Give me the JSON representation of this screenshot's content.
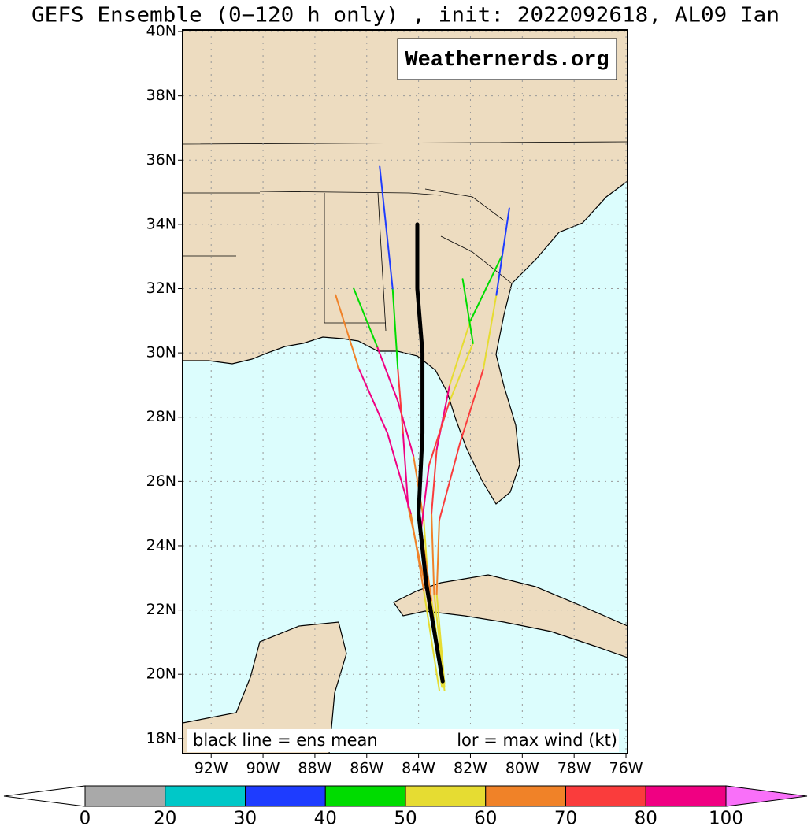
{
  "chart_data": {
    "type": "map",
    "title": "GEFS Ensemble (0−120 h only) , init: 2022092618, AL09 Ian",
    "watermark": "Weathernerds.org",
    "legend_texts": [
      "black line = ens mean",
      "lor = max wind (kt)"
    ],
    "xlim": [
      -93.1,
      -75.94
    ],
    "ylim": [
      17.53,
      40.05
    ],
    "xticks": [
      {
        "value": -92,
        "label": "92W"
      },
      {
        "value": -90,
        "label": "90W"
      },
      {
        "value": -88,
        "label": "88W"
      },
      {
        "value": -86,
        "label": "86W"
      },
      {
        "value": -84,
        "label": "84W"
      },
      {
        "value": -82,
        "label": "82W"
      },
      {
        "value": -80,
        "label": "80W"
      },
      {
        "value": -78,
        "label": "78W"
      },
      {
        "value": -76,
        "label": "76W"
      }
    ],
    "yticks": [
      {
        "value": 18,
        "label": "18N"
      },
      {
        "value": 20,
        "label": "20N"
      },
      {
        "value": 22,
        "label": "22N"
      },
      {
        "value": 24,
        "label": "24N"
      },
      {
        "value": 26,
        "label": "26N"
      },
      {
        "value": 28,
        "label": "28N"
      },
      {
        "value": 30,
        "label": "30N"
      },
      {
        "value": 32,
        "label": "32N"
      },
      {
        "value": 34,
        "label": "34N"
      },
      {
        "value": 36,
        "label": "36N"
      },
      {
        "value": 38,
        "label": "38N"
      },
      {
        "value": 40,
        "label": "40N"
      }
    ],
    "grid": true,
    "mean_track": {
      "color": "#000000",
      "lon": [
        -83.07,
        -83.7,
        -84.0,
        -83.85,
        -83.85,
        -84.05,
        -84.05
      ],
      "lat": [
        19.78,
        22.8,
        25.0,
        27.5,
        30.0,
        32.0,
        34.0
      ]
    },
    "series": [
      {
        "lon": [
          -83.1,
          -83.6,
          -83.8,
          -84.2,
          -84.8,
          -85.6,
          -86.5
        ],
        "lat": [
          19.6,
          22.5,
          24.8,
          26.8,
          28.5,
          30.2,
          32.0
        ],
        "wind": [
          55,
          55,
          65,
          85,
          85,
          45,
          35
        ]
      },
      {
        "lon": [
          -83.0,
          -83.4,
          -83.5,
          -83.3,
          -82.8,
          -82.0,
          -80.8
        ],
        "lat": [
          19.6,
          22.5,
          25.0,
          27.0,
          29.0,
          31.0,
          33.0
        ],
        "wind": [
          55,
          60,
          75,
          80,
          55,
          40,
          30
        ]
      },
      {
        "lon": [
          -83.2,
          -83.8,
          -84.3,
          -85.2,
          -86.3,
          -87.2
        ],
        "lat": [
          19.5,
          22.6,
          25.0,
          27.5,
          29.5,
          31.8
        ],
        "wind": [
          55,
          60,
          80,
          85,
          60,
          35
        ]
      },
      {
        "lon": [
          -83.0,
          -83.3,
          -83.2,
          -82.4,
          -81.5,
          -81.0,
          -80.5
        ],
        "lat": [
          19.7,
          22.5,
          24.8,
          27.2,
          29.5,
          31.8,
          34.5
        ],
        "wind": [
          55,
          60,
          75,
          70,
          50,
          30,
          25
        ]
      },
      {
        "lon": [
          -83.1,
          -83.7,
          -84.4,
          -84.6,
          -84.8,
          -85.0,
          -85.5
        ],
        "lat": [
          19.7,
          22.6,
          25.2,
          27.5,
          29.5,
          32.0,
          35.8
        ],
        "wind": [
          55,
          60,
          80,
          75,
          45,
          30,
          15
        ]
      },
      {
        "lon": [
          -83.0,
          -83.5,
          -83.9,
          -83.6,
          -82.8,
          -81.9,
          -82.3
        ],
        "lat": [
          19.5,
          22.3,
          24.5,
          26.5,
          28.5,
          30.3,
          32.3
        ],
        "wind": [
          55,
          60,
          80,
          70,
          55,
          40,
          30
        ]
      }
    ],
    "colorbar": {
      "ticks": [
        0,
        20,
        30,
        40,
        50,
        60,
        70,
        80,
        100
      ],
      "colors": [
        "#a9a9a9",
        "#00c8c8",
        "#1e3cff",
        "#00dc00",
        "#e6dc32",
        "#f08228",
        "#fa3c3c",
        "#f00082"
      ],
      "under_color": "#ffffff",
      "over_color": "#f970f9"
    }
  }
}
